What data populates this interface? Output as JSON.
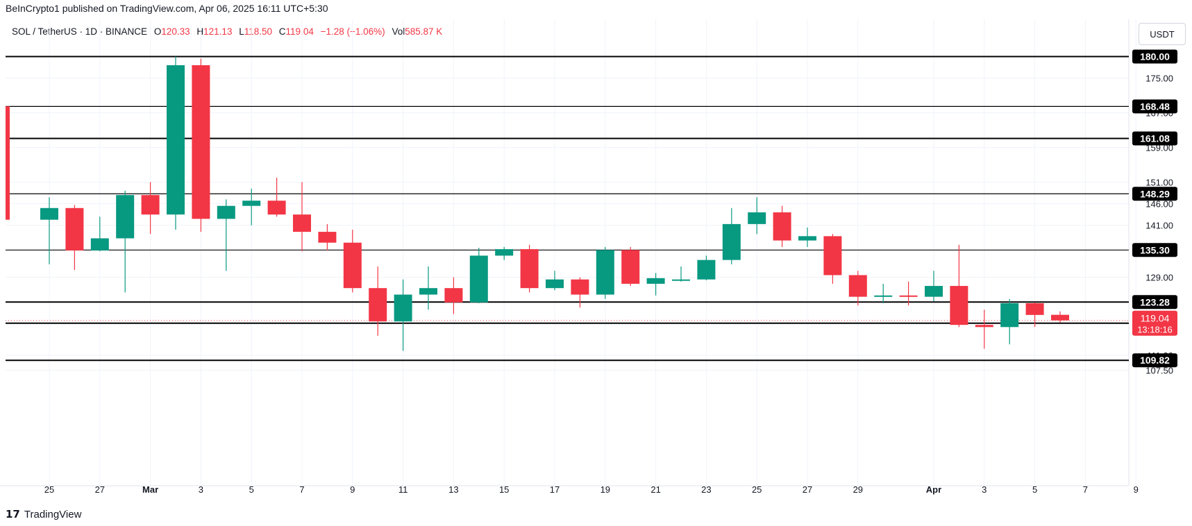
{
  "header": {
    "published_line": "BeInCrypto1 published on TradingView.com, Apr 06, 2025 16:11 UTC+5:30"
  },
  "legend": {
    "symbol": "SOL / TetherUS · 1D · BINANCE",
    "open_label": "O",
    "open": "120.33",
    "high_label": "H",
    "high": "121.13",
    "low_label": "L",
    "low": "118.50",
    "close_label": "C",
    "close": "119.04",
    "change": "−1.28 (−1.06%)",
    "vol_label": "Vol",
    "vol": "585.87 K"
  },
  "currency_button": "USDT",
  "footer": {
    "logo": "𝟭𝟳",
    "brand": "TradingView"
  },
  "colors": {
    "up": "#089981",
    "down": "#f23645",
    "level_line": "#000000",
    "grid": "#f0f3fa"
  },
  "chart_data": {
    "type": "candlestick",
    "symbol": "SOL / TetherUS",
    "interval": "1D",
    "exchange": "BINANCE",
    "ylim": [
      104,
      183
    ],
    "y_ticks": [
      {
        "value": 175.0,
        "label": "175.00"
      },
      {
        "value": 167.0,
        "label": "167.00"
      },
      {
        "value": 159.0,
        "label": "159.00"
      },
      {
        "value": 151.0,
        "label": "151.00"
      },
      {
        "value": 146.0,
        "label": "146.00"
      },
      {
        "value": 141.0,
        "label": "141.00"
      },
      {
        "value": 129.0,
        "label": "129.00"
      },
      {
        "value": 111.0,
        "label": "111.00"
      },
      {
        "value": 107.5,
        "label": "107.50"
      }
    ],
    "levels": [
      {
        "value": 180.0,
        "label": "180.00"
      },
      {
        "value": 168.48,
        "label": "168.48"
      },
      {
        "value": 161.08,
        "label": "161.08"
      },
      {
        "value": 148.29,
        "label": "148.29"
      },
      {
        "value": 135.3,
        "label": "135.30"
      },
      {
        "value": 123.28,
        "label": "123.28"
      },
      {
        "value": 118.4,
        "label": "118.40"
      },
      {
        "value": 109.82,
        "label": "109.82"
      }
    ],
    "last_price": {
      "value": 119.04,
      "label": "119.04",
      "countdown": "13:18:16"
    },
    "x_ticks": [
      {
        "day": -5,
        "label": "25",
        "bold": false
      },
      {
        "day": -3,
        "label": "27",
        "bold": false
      },
      {
        "day": -1,
        "label": "Mar",
        "bold": true
      },
      {
        "day": 1,
        "label": "3",
        "bold": false
      },
      {
        "day": 3,
        "label": "5",
        "bold": false
      },
      {
        "day": 5,
        "label": "7",
        "bold": false
      },
      {
        "day": 7,
        "label": "9",
        "bold": false
      },
      {
        "day": 9,
        "label": "11",
        "bold": false
      },
      {
        "day": 11,
        "label": "13",
        "bold": false
      },
      {
        "day": 13,
        "label": "15",
        "bold": false
      },
      {
        "day": 15,
        "label": "17",
        "bold": false
      },
      {
        "day": 17,
        "label": "19",
        "bold": false
      },
      {
        "day": 19,
        "label": "21",
        "bold": false
      },
      {
        "day": 21,
        "label": "23",
        "bold": false
      },
      {
        "day": 23,
        "label": "25",
        "bold": false
      },
      {
        "day": 25,
        "label": "27",
        "bold": false
      },
      {
        "day": 27,
        "label": "29",
        "bold": false
      },
      {
        "day": 30,
        "label": "Apr",
        "bold": true
      },
      {
        "day": 32,
        "label": "3",
        "bold": false
      },
      {
        "day": 34,
        "label": "5",
        "bold": false
      },
      {
        "day": 36,
        "label": "7",
        "bold": false
      },
      {
        "day": 38,
        "label": "9",
        "bold": false
      }
    ],
    "candles": [
      {
        "date": "Feb 25",
        "day": -5,
        "o": 142.3,
        "h": 147.5,
        "l": 132.0,
        "c": 145.0
      },
      {
        "date": "Feb 26",
        "day": -4,
        "o": 145.0,
        "h": 145.7,
        "l": 130.7,
        "c": 135.2
      },
      {
        "date": "Feb 27",
        "day": -3,
        "o": 135.2,
        "h": 143.0,
        "l": 135.0,
        "c": 138.0
      },
      {
        "date": "Feb 28",
        "day": -2,
        "o": 138.0,
        "h": 149.0,
        "l": 125.5,
        "c": 148.0
      },
      {
        "date": "Mar 1",
        "day": -1,
        "o": 148.0,
        "h": 151.0,
        "l": 139.0,
        "c": 143.5
      },
      {
        "date": "Mar 2",
        "day": 0,
        "o": 143.5,
        "h": 180.0,
        "l": 140.0,
        "c": 178.0
      },
      {
        "date": "Mar 3",
        "day": 1,
        "o": 178.0,
        "h": 179.5,
        "l": 139.5,
        "c": 142.5
      },
      {
        "date": "Mar 4",
        "day": 2,
        "o": 142.5,
        "h": 147.0,
        "l": 130.5,
        "c": 145.5
      },
      {
        "date": "Mar 5",
        "day": 3,
        "o": 145.5,
        "h": 149.5,
        "l": 141.0,
        "c": 146.7
      },
      {
        "date": "Mar 6",
        "day": 4,
        "o": 146.7,
        "h": 152.0,
        "l": 143.0,
        "c": 143.5
      },
      {
        "date": "Mar 7",
        "day": 5,
        "o": 143.5,
        "h": 151.0,
        "l": 135.0,
        "c": 139.5
      },
      {
        "date": "Mar 8",
        "day": 6,
        "o": 139.5,
        "h": 141.3,
        "l": 135.2,
        "c": 137.0
      },
      {
        "date": "Mar 9",
        "day": 7,
        "o": 137.0,
        "h": 140.0,
        "l": 125.5,
        "c": 126.5
      },
      {
        "date": "Mar 10",
        "day": 8,
        "o": 126.5,
        "h": 131.5,
        "l": 115.5,
        "c": 118.8
      },
      {
        "date": "Mar 11",
        "day": 9,
        "o": 118.8,
        "h": 128.5,
        "l": 112.0,
        "c": 125.0
      },
      {
        "date": "Mar 12",
        "day": 10,
        "o": 125.0,
        "h": 131.5,
        "l": 121.5,
        "c": 126.5
      },
      {
        "date": "Mar 13",
        "day": 11,
        "o": 126.5,
        "h": 129.0,
        "l": 120.5,
        "c": 123.2
      },
      {
        "date": "Mar 14",
        "day": 12,
        "o": 123.2,
        "h": 135.8,
        "l": 123.0,
        "c": 134.0
      },
      {
        "date": "Mar 15",
        "day": 13,
        "o": 134.0,
        "h": 136.0,
        "l": 133.0,
        "c": 135.5
      },
      {
        "date": "Mar 16",
        "day": 14,
        "o": 135.5,
        "h": 136.5,
        "l": 125.5,
        "c": 126.5
      },
      {
        "date": "Mar 17",
        "day": 15,
        "o": 126.5,
        "h": 130.5,
        "l": 126.0,
        "c": 128.5
      },
      {
        "date": "Mar 18",
        "day": 16,
        "o": 128.5,
        "h": 129.0,
        "l": 122.0,
        "c": 125.0
      },
      {
        "date": "Mar 19",
        "day": 17,
        "o": 125.0,
        "h": 136.0,
        "l": 124.0,
        "c": 135.3
      },
      {
        "date": "Mar 20",
        "day": 18,
        "o": 135.3,
        "h": 136.0,
        "l": 127.0,
        "c": 127.5
      },
      {
        "date": "Mar 21",
        "day": 19,
        "o": 127.5,
        "h": 130.0,
        "l": 124.8,
        "c": 128.8
      },
      {
        "date": "Mar 22",
        "day": 20,
        "o": 128.5,
        "h": 131.5,
        "l": 128.0,
        "c": 128.5
      },
      {
        "date": "Mar 23",
        "day": 21,
        "o": 128.5,
        "h": 134.0,
        "l": 128.3,
        "c": 133.0
      },
      {
        "date": "Mar 24",
        "day": 22,
        "o": 133.0,
        "h": 145.0,
        "l": 132.0,
        "c": 141.3
      },
      {
        "date": "Mar 25",
        "day": 23,
        "o": 141.3,
        "h": 147.5,
        "l": 139.0,
        "c": 144.0
      },
      {
        "date": "Mar 26",
        "day": 24,
        "o": 144.0,
        "h": 145.5,
        "l": 136.0,
        "c": 137.5
      },
      {
        "date": "Mar 27",
        "day": 25,
        "o": 137.5,
        "h": 140.5,
        "l": 136.0,
        "c": 138.5
      },
      {
        "date": "Mar 28",
        "day": 26,
        "o": 138.5,
        "h": 139.0,
        "l": 127.5,
        "c": 129.5
      },
      {
        "date": "Mar 29",
        "day": 27,
        "o": 129.5,
        "h": 130.5,
        "l": 122.5,
        "c": 124.5
      },
      {
        "date": "Mar 30",
        "day": 28,
        "o": 124.5,
        "h": 127.5,
        "l": 123.0,
        "c": 124.8
      },
      {
        "date": "Mar 31",
        "day": 29,
        "o": 124.8,
        "h": 128.0,
        "l": 122.5,
        "c": 124.5
      },
      {
        "date": "Apr 1",
        "day": 30,
        "o": 124.5,
        "h": 130.5,
        "l": 123.5,
        "c": 127.0
      },
      {
        "date": "Apr 2",
        "day": 31,
        "o": 127.0,
        "h": 136.5,
        "l": 117.5,
        "c": 118.0
      },
      {
        "date": "Apr 3",
        "day": 32,
        "o": 118.0,
        "h": 121.5,
        "l": 112.5,
        "c": 117.5
      },
      {
        "date": "Apr 4",
        "day": 33,
        "o": 117.5,
        "h": 124.0,
        "l": 113.5,
        "c": 123.0
      },
      {
        "date": "Apr 5",
        "day": 34,
        "o": 123.0,
        "h": 123.2,
        "l": 117.5,
        "c": 120.3
      },
      {
        "date": "Apr 6",
        "day": 35,
        "o": 120.33,
        "h": 121.13,
        "l": 118.5,
        "c": 119.04
      }
    ]
  }
}
